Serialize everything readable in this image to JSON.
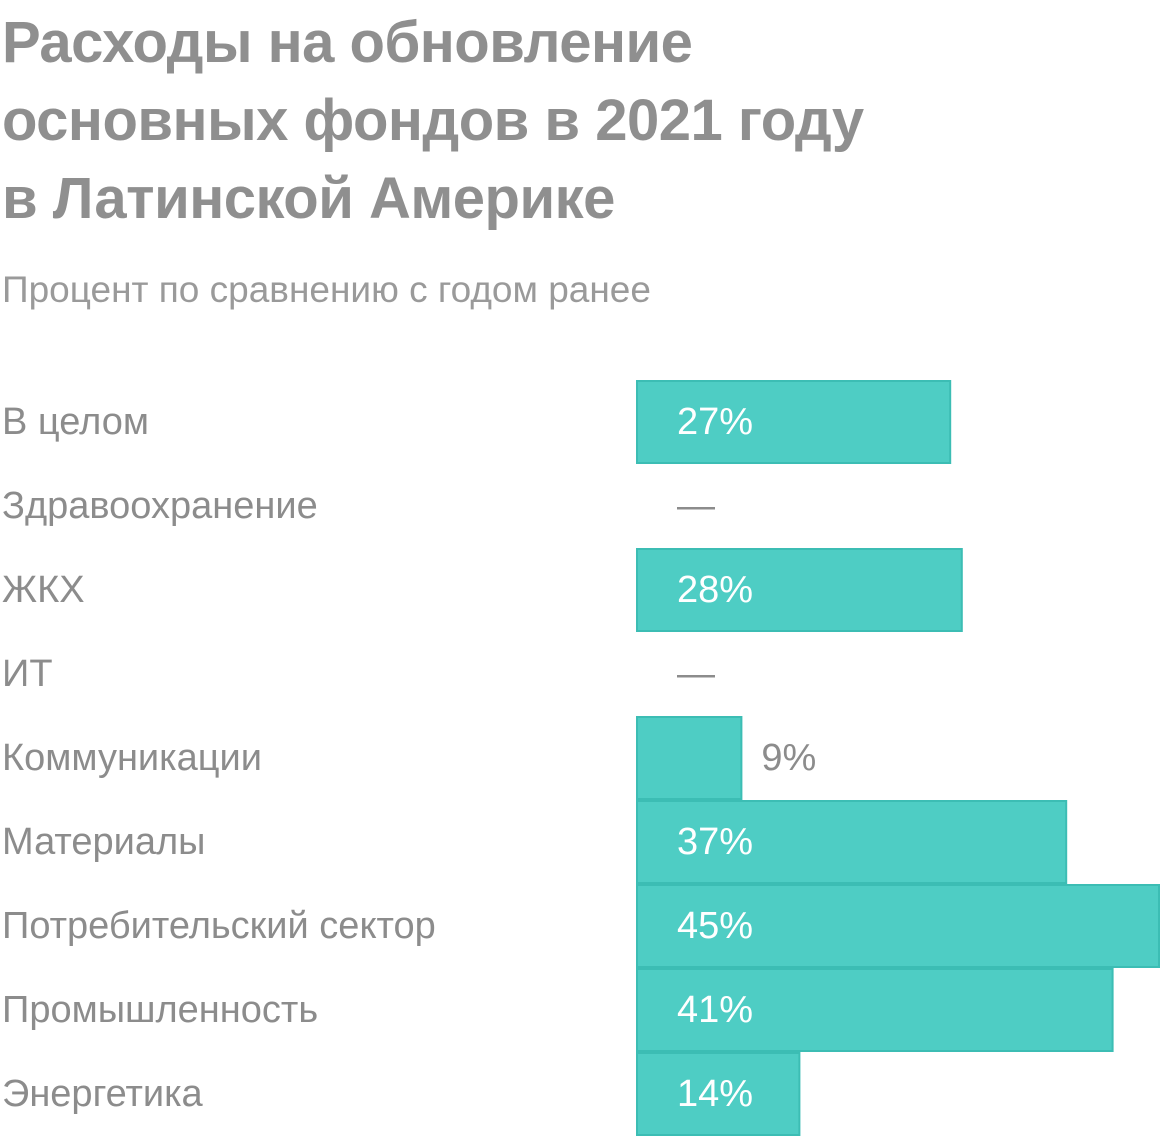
{
  "chart_data": {
    "type": "bar",
    "orientation": "horizontal",
    "title": "Расходы на обновление\nосновных фондов в 2021 году\nв Латинской Америке",
    "subtitle": "Процент по сравнению с годом ранее",
    "unit": "%",
    "missing_label": "—",
    "categories": [
      "В целом",
      "Здравоохранение",
      "ЖКХ",
      "ИТ",
      "Коммуникации",
      "Материалы",
      "Потребительский сектор",
      "Промышленность",
      "Энергетика"
    ],
    "values": [
      27,
      null,
      28,
      null,
      9,
      37,
      45,
      41,
      14
    ],
    "value_labels": [
      "27%",
      "—",
      "28%",
      "—",
      "9%",
      "37%",
      "45%",
      "41%",
      "14%"
    ],
    "xlim": [
      0,
      45
    ],
    "grid": false,
    "legend": "none",
    "colors": {
      "bar": "#4ecdc4",
      "bar_edge": "#3cbdb4",
      "label_inside": "#ffffff",
      "label_outside": "#8c8c8c",
      "text": "#8c8c8c",
      "title": "#8f8f8f"
    }
  }
}
